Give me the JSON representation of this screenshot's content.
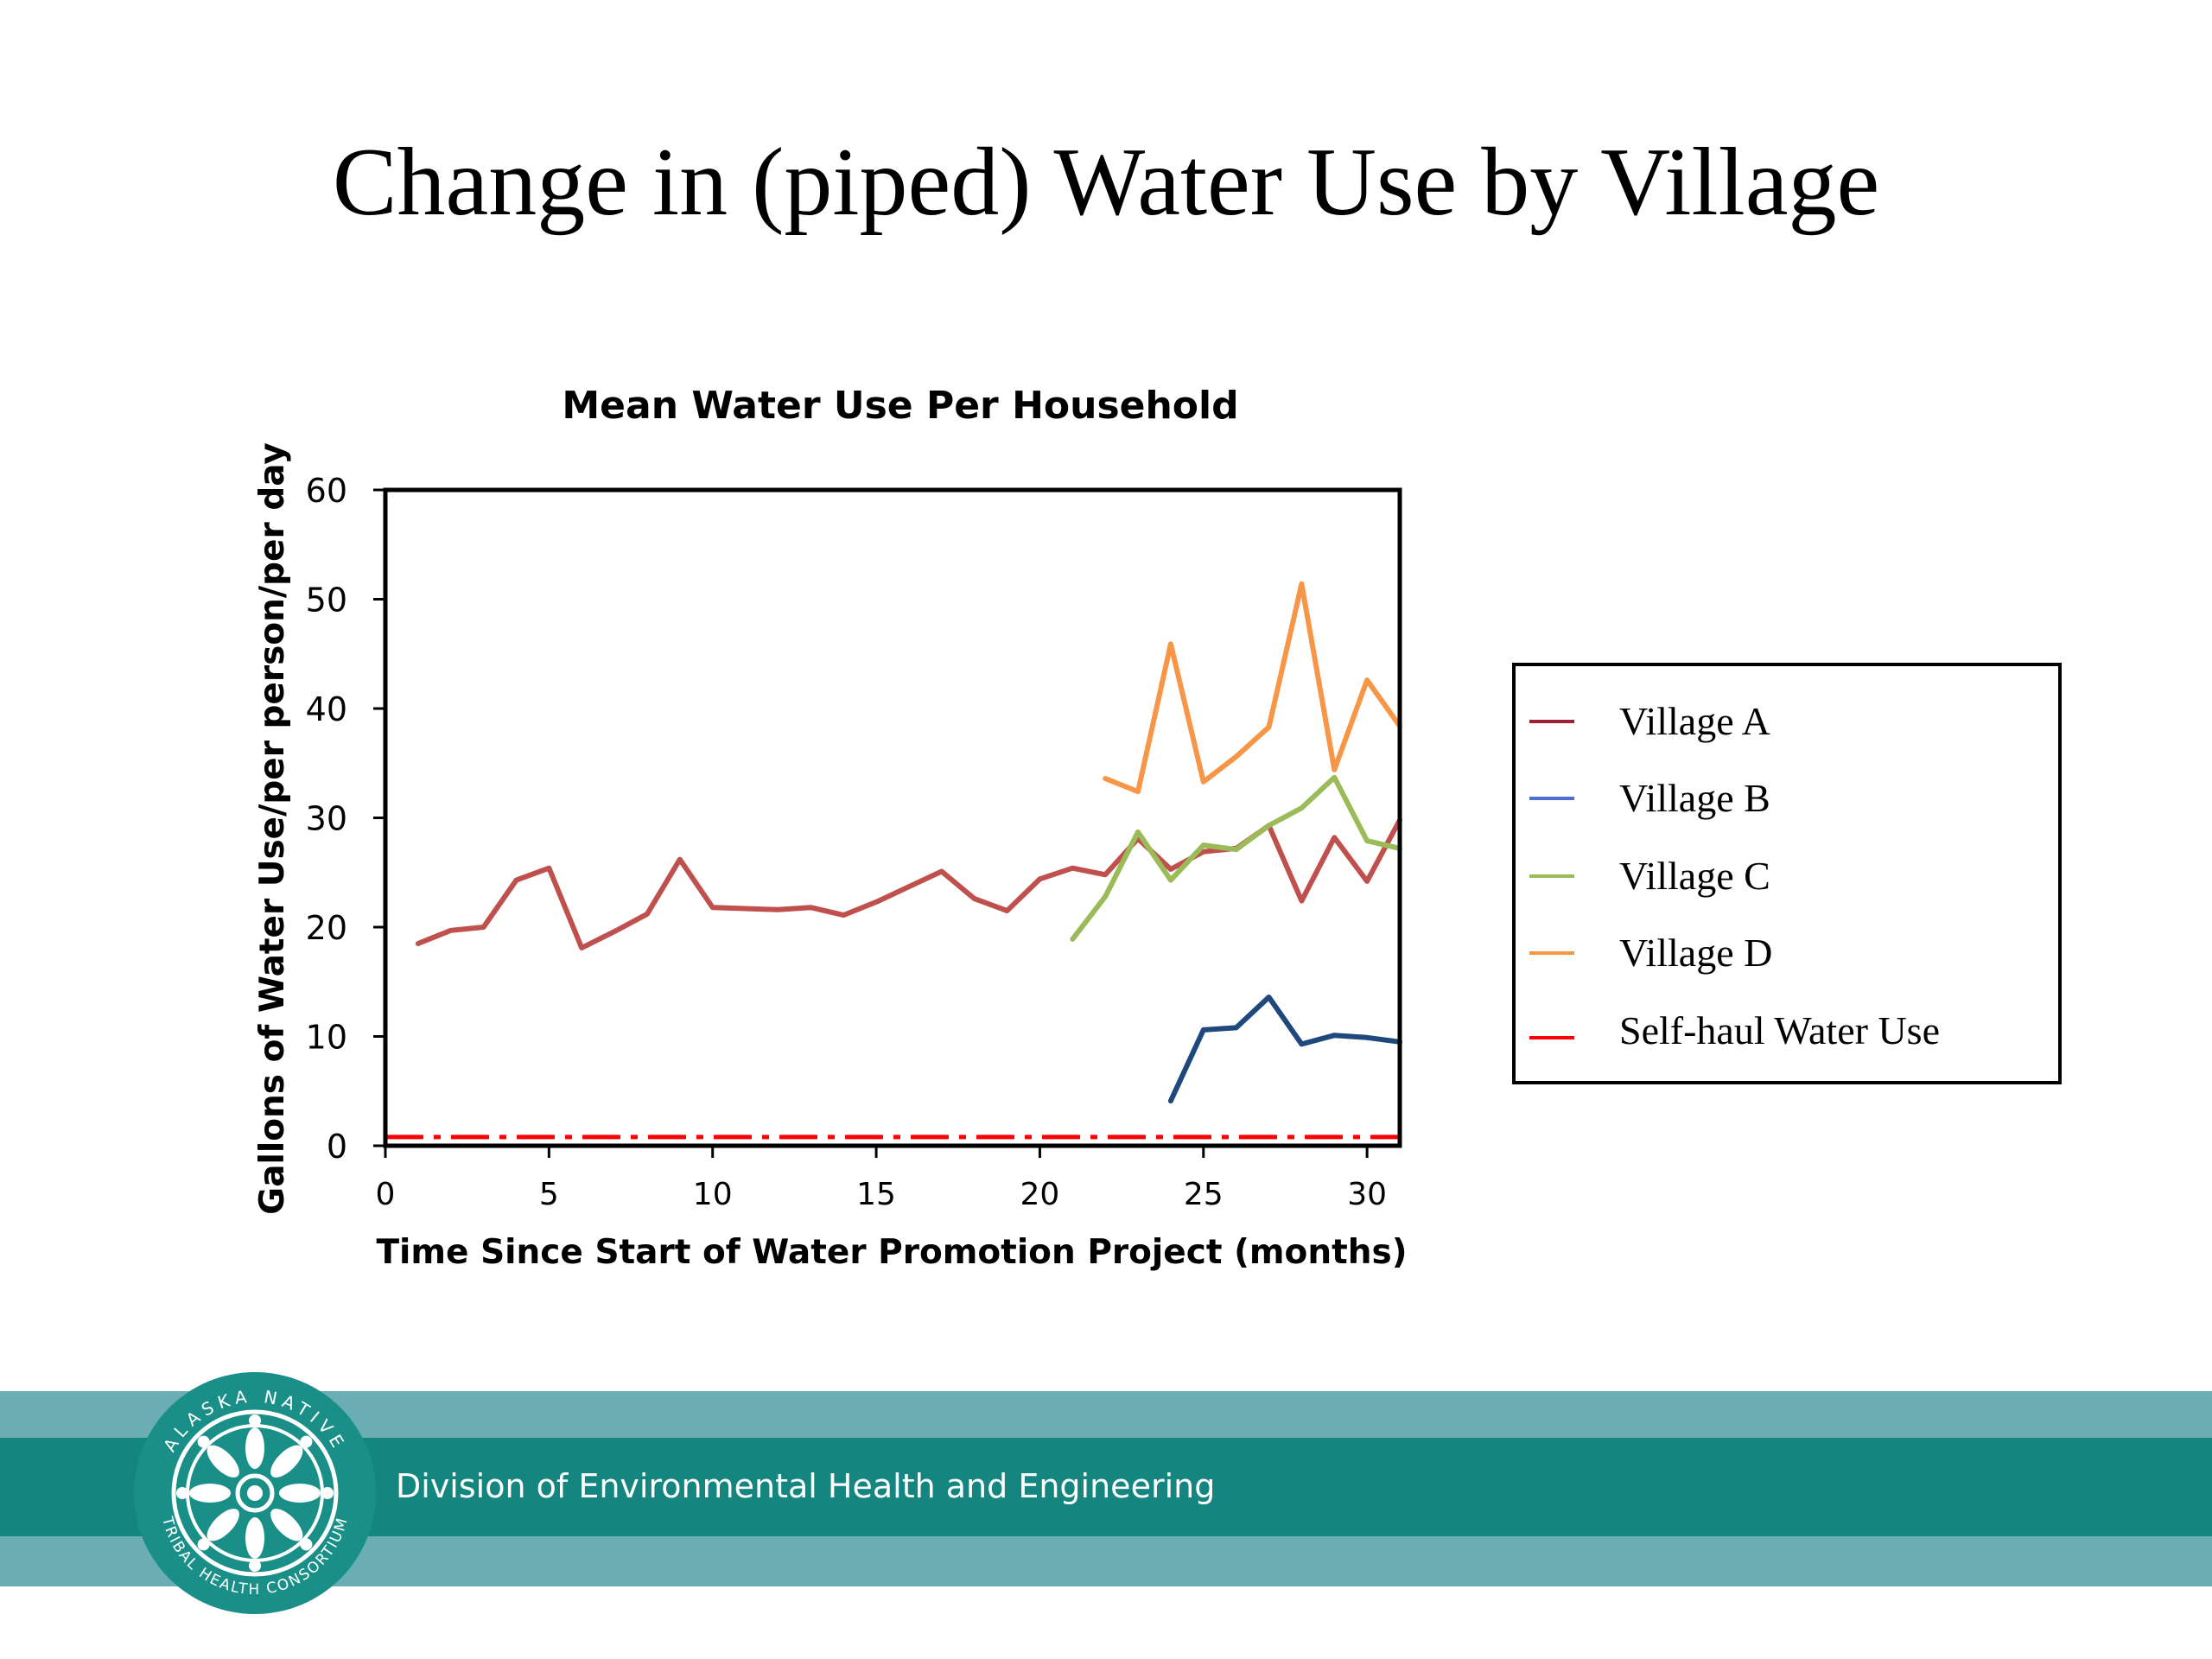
{
  "slide": {
    "title": "Change in (piped) Water Use by Village",
    "footer_text": "Division of Environmental Health and Engineering",
    "logo_text": "ALASKA NATIVE TRIBAL HEALTH CONSORTIUM",
    "colors": {
      "footer_outer": "#6aadb2",
      "footer_inner": "#14857f"
    }
  },
  "chart_data": {
    "type": "line",
    "title": "Mean Water Use Per Household",
    "xlabel": "Time Since Start of Water Promotion Project (months)",
    "ylabel": "Gallons of Water Use/per person/per day",
    "xlim": [
      0,
      31
    ],
    "ylim": [
      0,
      60
    ],
    "xticks": [
      0,
      5,
      10,
      15,
      20,
      25,
      30
    ],
    "yticks": [
      0,
      10,
      20,
      30,
      40,
      50,
      60
    ],
    "grid": false,
    "legend_position": "right",
    "series": [
      {
        "name": "Village A",
        "color": "#c0504d",
        "legend_color": "#9b2335",
        "x": [
          1,
          2,
          3,
          4,
          5,
          6,
          7,
          8,
          9,
          10,
          11,
          12,
          13,
          14,
          15,
          16,
          17,
          18,
          19,
          20,
          21,
          22,
          23,
          24,
          25,
          26,
          27,
          28,
          29,
          30,
          31
        ],
        "y": [
          18.5,
          19.7,
          20.0,
          24.3,
          25.4,
          18.1,
          19.6,
          21.2,
          26.2,
          21.8,
          21.7,
          21.6,
          21.8,
          21.1,
          22.3,
          23.7,
          25.1,
          22.6,
          21.5,
          24.4,
          25.4,
          24.8,
          28.1,
          25.3,
          26.9,
          27.2,
          29.3,
          22.4,
          28.2,
          24.2,
          29.8
        ]
      },
      {
        "name": "Village B",
        "color": "#1f497d",
        "legend_color": "#4f6fd0",
        "x": [
          24,
          25,
          26,
          27,
          28,
          29,
          30,
          31
        ],
        "y": [
          4.1,
          10.6,
          10.8,
          13.6,
          9.3,
          10.1,
          9.9,
          9.5
        ]
      },
      {
        "name": "Village C",
        "color": "#9bbb59",
        "legend_color": "#9bbb59",
        "x": [
          21,
          22,
          23,
          24,
          25,
          26,
          27,
          28,
          29,
          30,
          31
        ],
        "y": [
          18.9,
          22.8,
          28.7,
          24.3,
          27.5,
          27.1,
          29.3,
          30.9,
          33.7,
          27.9,
          27.2
        ]
      },
      {
        "name": "Village D",
        "color": "#f79646",
        "legend_color": "#f79646",
        "x": [
          22,
          23,
          24,
          25,
          26,
          27,
          28,
          29,
          30,
          31
        ],
        "y": [
          33.6,
          32.4,
          45.9,
          33.3,
          35.6,
          38.3,
          51.4,
          34.4,
          42.6,
          38.4
        ]
      },
      {
        "name": "Self-haul Water Use",
        "color": "#ff0000",
        "legend_color": "#ff0000",
        "dash": "dash-dot",
        "x": [
          0,
          31
        ],
        "y": [
          0.8,
          0.8
        ]
      }
    ]
  }
}
